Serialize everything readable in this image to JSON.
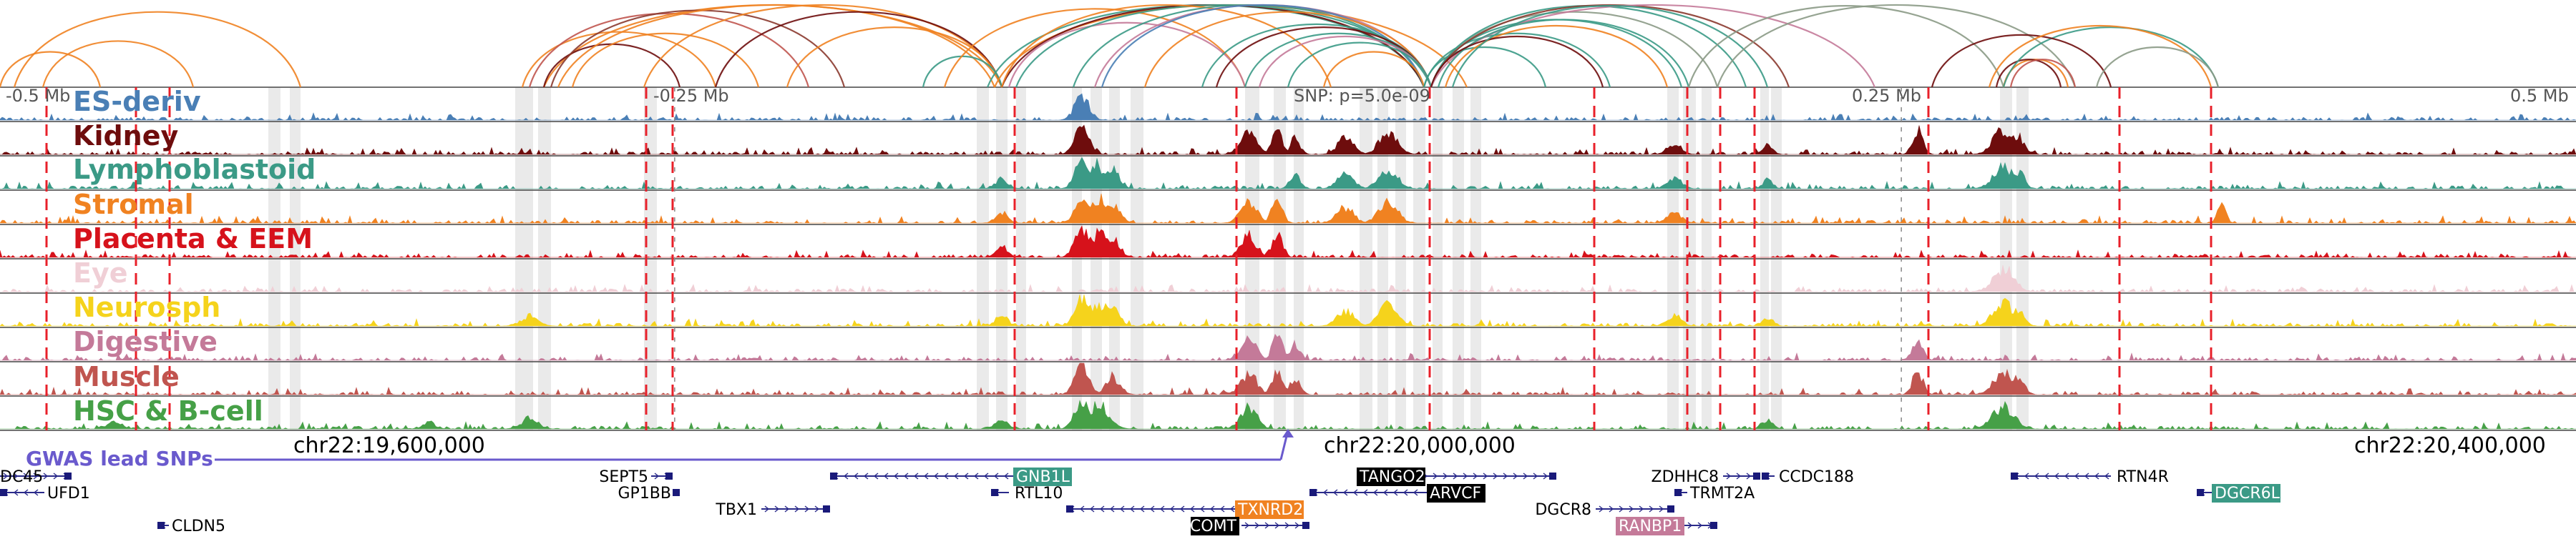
{
  "view": {
    "chrom": "chr22",
    "start": 19475000,
    "end": 20525000,
    "scale_labels": [
      "-0.5 Mb",
      "-0.25 Mb",
      "0.25 Mb",
      "0.5 Mb"
    ],
    "scale_positions_bp": [
      19500000,
      19750000,
      20250000,
      20500000
    ],
    "snp_label": "SNP: p=5.0e-09",
    "snp_position_bp": 20000000
  },
  "tracks": [
    {
      "label": "ES-deriv",
      "color": "#4a7fb5"
    },
    {
      "label": "Kidney",
      "color": "#6e0d0d"
    },
    {
      "label": "Lymphoblastoid",
      "color": "#3b9a86"
    },
    {
      "label": "Stromal",
      "color": "#f08221"
    },
    {
      "label": "Placenta & EEM",
      "color": "#d6121b"
    },
    {
      "label": "Eye",
      "color": "#f0cfd6"
    },
    {
      "label": "Neurosph",
      "color": "#f5d31c"
    },
    {
      "label": "Digestive",
      "color": "#c47a99"
    },
    {
      "label": "Muscle",
      "color": "#c0554f"
    },
    {
      "label": "HSC & B-cell",
      "color": "#46a047"
    }
  ],
  "gwas": {
    "label": "GWAS lead SNPs",
    "color": "#6a5acd",
    "coordinate_labels": [
      "chr22:19,600,000",
      "chr22:20,000,000",
      "chr22:20,400,000"
    ],
    "coordinate_positions_bp": [
      19600000,
      20000000,
      20400000
    ]
  },
  "genes": [
    {
      "name": "DC45",
      "row": 0
    },
    {
      "name": "UFD1",
      "row": 1
    },
    {
      "name": "CLDN5",
      "row": 3
    },
    {
      "name": "SEPT5",
      "row": 0
    },
    {
      "name": "GP1BB",
      "row": 1
    },
    {
      "name": "TBX1",
      "row": 2
    },
    {
      "name": "GNB1L",
      "row": 0,
      "badge": "#3b9a86"
    },
    {
      "name": "RTL10",
      "row": 1
    },
    {
      "name": "TXNRD2",
      "row": 2,
      "badge": "#f08221"
    },
    {
      "name": "COMT",
      "row": 3,
      "badge": "#000000"
    },
    {
      "name": "TANGO2",
      "row": 0,
      "badge": "#000000"
    },
    {
      "name": "ARVCF",
      "row": 1,
      "badge": "#000000"
    },
    {
      "name": "DGCR8",
      "row": 2
    },
    {
      "name": "RANBP1",
      "row": 3,
      "badge": "#c47a99"
    },
    {
      "name": "ZDHHC8",
      "row": 0
    },
    {
      "name": "CCDC188",
      "row": 0
    },
    {
      "name": "TRMT2A",
      "row": 1
    },
    {
      "name": "RTN4R",
      "row": 0
    },
    {
      "name": "DGCR6L",
      "row": 1,
      "badge": "#3b9a86"
    }
  ]
}
